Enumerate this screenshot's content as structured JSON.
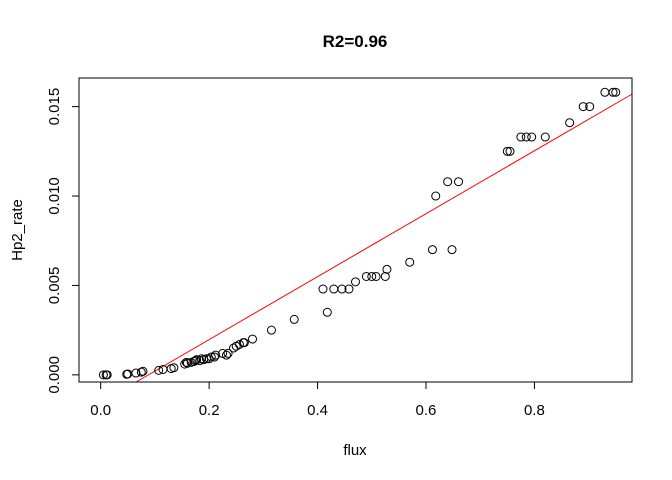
{
  "chart_data": {
    "type": "scatter",
    "title": "R2=0.96",
    "xlabel": "flux",
    "ylabel": "Hp2_rate",
    "xlim": [
      -0.04,
      0.98
    ],
    "ylim": [
      -0.0004,
      0.0166
    ],
    "xticks": [
      0.0,
      0.2,
      0.4,
      0.6,
      0.8
    ],
    "xtick_labels": [
      "0.0",
      "0.2",
      "0.4",
      "0.6",
      "0.8"
    ],
    "yticks": [
      0.0,
      0.005,
      0.01,
      0.015
    ],
    "ytick_labels": [
      "0.000",
      "0.005",
      "0.010",
      "0.015"
    ],
    "grid": false,
    "legend": "none",
    "point_marker": "open circle",
    "point_color": "#000000",
    "fit_line": {
      "color": "#ff0000",
      "slope": 0.0176,
      "intercept": -0.00155
    },
    "points": [
      [
        0.005,
        0.0
      ],
      [
        0.01,
        0.0
      ],
      [
        0.012,
        0.0
      ],
      [
        0.048,
        3e-05
      ],
      [
        0.05,
        5e-05
      ],
      [
        0.065,
        0.0001
      ],
      [
        0.075,
        0.00015
      ],
      [
        0.078,
        0.0002
      ],
      [
        0.107,
        0.00025
      ],
      [
        0.115,
        0.0003
      ],
      [
        0.13,
        0.00035
      ],
      [
        0.135,
        0.0004
      ],
      [
        0.155,
        0.0006
      ],
      [
        0.158,
        0.0007
      ],
      [
        0.16,
        0.00065
      ],
      [
        0.167,
        0.0007
      ],
      [
        0.172,
        0.00075
      ],
      [
        0.175,
        0.0008
      ],
      [
        0.177,
        0.00085
      ],
      [
        0.183,
        0.0008
      ],
      [
        0.186,
        0.0009
      ],
      [
        0.19,
        0.00085
      ],
      [
        0.195,
        0.0009
      ],
      [
        0.2,
        0.0009
      ],
      [
        0.204,
        0.001
      ],
      [
        0.21,
        0.001
      ],
      [
        0.212,
        0.0011
      ],
      [
        0.225,
        0.0012
      ],
      [
        0.232,
        0.0011
      ],
      [
        0.235,
        0.0012
      ],
      [
        0.245,
        0.0015
      ],
      [
        0.25,
        0.0016
      ],
      [
        0.256,
        0.0017
      ],
      [
        0.263,
        0.0018
      ],
      [
        0.265,
        0.0018
      ],
      [
        0.28,
        0.002
      ],
      [
        0.315,
        0.0025
      ],
      [
        0.357,
        0.0031
      ],
      [
        0.41,
        0.0048
      ],
      [
        0.418,
        0.0035
      ],
      [
        0.43,
        0.0048
      ],
      [
        0.445,
        0.0048
      ],
      [
        0.458,
        0.0048
      ],
      [
        0.47,
        0.0052
      ],
      [
        0.49,
        0.0055
      ],
      [
        0.5,
        0.0055
      ],
      [
        0.508,
        0.0055
      ],
      [
        0.525,
        0.0055
      ],
      [
        0.528,
        0.0059
      ],
      [
        0.57,
        0.0063
      ],
      [
        0.612,
        0.007
      ],
      [
        0.618,
        0.01
      ],
      [
        0.64,
        0.0108
      ],
      [
        0.648,
        0.007
      ],
      [
        0.66,
        0.0108
      ],
      [
        0.75,
        0.0125
      ],
      [
        0.755,
        0.0125
      ],
      [
        0.775,
        0.0133
      ],
      [
        0.785,
        0.0133
      ],
      [
        0.795,
        0.0133
      ],
      [
        0.82,
        0.0133
      ],
      [
        0.865,
        0.0141
      ],
      [
        0.89,
        0.015
      ],
      [
        0.902,
        0.015
      ],
      [
        0.93,
        0.0158
      ],
      [
        0.945,
        0.0158
      ],
      [
        0.95,
        0.0158
      ]
    ]
  }
}
